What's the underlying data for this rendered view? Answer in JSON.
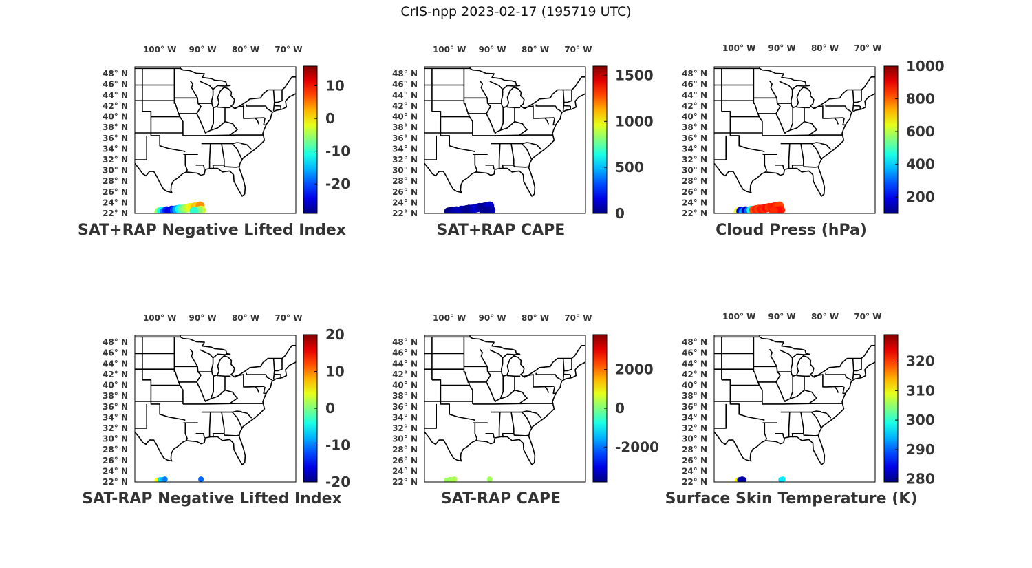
{
  "title": "CrIS-npp 2023-02-17 (195719 UTC)",
  "lon_ticks": [
    "100° W",
    "90° W",
    "80° W",
    "70° W"
  ],
  "lat_ticks": [
    "48° N",
    "46° N",
    "44° N",
    "42° N",
    "40° N",
    "38° N",
    "36° N",
    "34° N",
    "32° N",
    "30° N",
    "28° N",
    "26° N",
    "24° N",
    "22° N"
  ],
  "colormap": "jet",
  "panels": [
    {
      "label": "SAT+RAP Negative Lifted Index",
      "colorbar": {
        "min": -29,
        "max": 16,
        "ticks": [
          "10",
          "0",
          "-10",
          "-20"
        ],
        "tick_values": [
          10,
          0,
          -10,
          -20
        ]
      },
      "point_values": [
        -5,
        -12,
        -18,
        -22,
        -25,
        -24,
        -20,
        -16,
        -12,
        -8,
        -6,
        -4,
        -2,
        0,
        2,
        1,
        4,
        -3,
        -6,
        -10
      ]
    },
    {
      "label": "SAT+RAP CAPE",
      "colorbar": {
        "min": 0,
        "max": 1600,
        "ticks": [
          "1500",
          "1000",
          "500",
          "0"
        ],
        "tick_values": [
          1500,
          1000,
          500,
          0
        ]
      },
      "point_values": [
        10,
        20,
        40,
        60,
        80,
        100,
        50,
        30,
        20,
        60,
        90,
        140,
        80,
        40,
        30,
        70,
        120,
        90,
        50,
        30
      ]
    },
    {
      "label": "Cloud Press (hPa)",
      "colorbar": {
        "min": 100,
        "max": 1000,
        "ticks": [
          "1000",
          "800",
          "600",
          "400",
          "200"
        ],
        "tick_values": [
          1000,
          800,
          600,
          400,
          200
        ]
      },
      "point_values": [
        650,
        200,
        350,
        150,
        300,
        450,
        820,
        860,
        830,
        870,
        850,
        880,
        840,
        860,
        870,
        850,
        830,
        860,
        880,
        850
      ]
    },
    {
      "label": "SAT-RAP Negative Lifted Index",
      "colorbar": {
        "min": -20,
        "max": 20,
        "ticks": [
          "20",
          "10",
          "0",
          "-10",
          "-20"
        ],
        "tick_values": [
          20,
          10,
          0,
          -10,
          -20
        ]
      },
      "point_values": [
        5,
        -6,
        -8,
        -10,
        -11
      ]
    },
    {
      "label": "SAT-RAP CAPE",
      "colorbar": {
        "min": -3800,
        "max": 3800,
        "ticks": [
          "2000",
          "0",
          "-2000"
        ],
        "tick_values": [
          2000,
          0,
          -2000
        ]
      },
      "point_values": [
        200,
        250,
        300,
        350,
        250
      ]
    },
    {
      "label": "Surface Skin Temperature (K)",
      "colorbar": {
        "min": 279,
        "max": 329,
        "ticks": [
          "320",
          "310",
          "300",
          "290",
          "280"
        ],
        "tick_values": [
          320,
          310,
          300,
          290,
          280
        ]
      },
      "point_values": [
        310,
        282,
        281,
        281,
        296,
        297
      ]
    }
  ]
}
